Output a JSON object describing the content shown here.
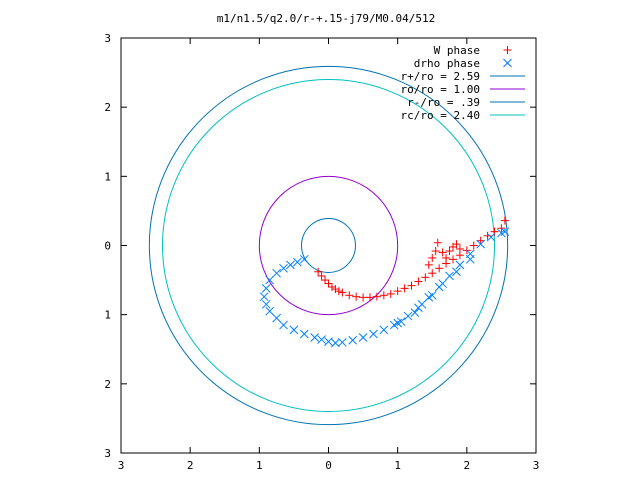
{
  "chart_data": {
    "type": "scatter",
    "title": "m1/n1.5/q2.0/r-+.15-j79/M0.04/512",
    "xlabel": "",
    "ylabel": "",
    "xlim": [
      -3,
      3
    ],
    "ylim": [
      -3,
      3
    ],
    "x_tick_values": [
      -3,
      -2,
      -1,
      0,
      1,
      2,
      3
    ],
    "x_tick_labels": [
      "3",
      "2",
      "1",
      "0",
      "1",
      "2",
      "3"
    ],
    "y_tick_values": [
      -3,
      -2,
      -1,
      0,
      1,
      2,
      3
    ],
    "y_tick_labels": [
      "3",
      "2",
      "1",
      "0",
      "1",
      "2",
      "3"
    ],
    "grid": false,
    "legend_position": "top-right",
    "circles": [
      {
        "name": "r+/ro = 2.59",
        "radius": 2.59,
        "color": "#0072b2"
      },
      {
        "name": "ro/ro = 1.00",
        "radius": 1.0,
        "color": "#9400d3"
      },
      {
        "name": "r-/ro = .39",
        "radius": 0.39,
        "color": "#0072b2"
      },
      {
        "name": "rc/ro = 2.40",
        "radius": 2.4,
        "color": "#00c0c0"
      }
    ],
    "series": [
      {
        "name": "W phase",
        "marker": "plus",
        "color": "#ff0000",
        "x": [
          -0.15,
          -0.1,
          -0.05,
          0.0,
          0.05,
          0.1,
          0.15,
          0.2,
          0.3,
          0.4,
          0.5,
          0.6,
          0.7,
          0.8,
          0.9,
          1.0,
          1.1,
          1.2,
          1.3,
          1.4,
          1.5,
          1.6,
          1.7,
          1.8,
          1.9,
          2.0,
          2.1,
          2.2,
          2.3,
          2.4,
          2.5,
          2.55,
          1.58,
          1.55,
          1.5,
          1.45,
          1.65,
          1.7,
          1.75,
          1.8,
          1.85,
          1.9
        ],
        "y": [
          -0.38,
          -0.44,
          -0.5,
          -0.55,
          -0.6,
          -0.63,
          -0.66,
          -0.68,
          -0.72,
          -0.74,
          -0.75,
          -0.75,
          -0.74,
          -0.72,
          -0.7,
          -0.66,
          -0.62,
          -0.58,
          -0.52,
          -0.46,
          -0.4,
          -0.33,
          -0.26,
          -0.2,
          -0.14,
          -0.07,
          0.0,
          0.07,
          0.14,
          0.2,
          0.25,
          0.36,
          0.04,
          -0.08,
          -0.18,
          -0.28,
          -0.1,
          -0.18,
          -0.08,
          -0.02,
          0.02,
          -0.05
        ]
      },
      {
        "name": "drho phase",
        "marker": "x",
        "color": "#0080ff",
        "x": [
          -0.35,
          -0.45,
          -0.55,
          -0.65,
          -0.75,
          -0.85,
          -0.9,
          -0.93,
          -0.9,
          -0.85,
          -0.75,
          -0.65,
          -0.5,
          -0.35,
          -0.2,
          -0.1,
          0.0,
          0.1,
          0.2,
          0.35,
          0.5,
          0.65,
          0.8,
          1.0,
          1.15,
          1.3,
          1.45,
          1.6,
          1.75,
          1.9,
          2.05,
          2.2,
          2.35,
          2.5,
          2.55,
          0.95,
          1.05,
          1.25,
          1.35,
          1.5,
          1.65,
          1.85,
          2.05
        ],
        "y": [
          -0.2,
          -0.24,
          -0.28,
          -0.33,
          -0.4,
          -0.5,
          -0.62,
          -0.74,
          -0.85,
          -0.95,
          -1.05,
          -1.15,
          -1.22,
          -1.28,
          -1.33,
          -1.36,
          -1.39,
          -1.41,
          -1.4,
          -1.37,
          -1.33,
          -1.28,
          -1.22,
          -1.12,
          -1.02,
          -0.9,
          -0.75,
          -0.6,
          -0.44,
          -0.28,
          -0.12,
          0.02,
          0.12,
          0.18,
          0.2,
          -1.15,
          -1.1,
          -0.97,
          -0.85,
          -0.72,
          -0.55,
          -0.38,
          -0.2
        ]
      }
    ]
  }
}
